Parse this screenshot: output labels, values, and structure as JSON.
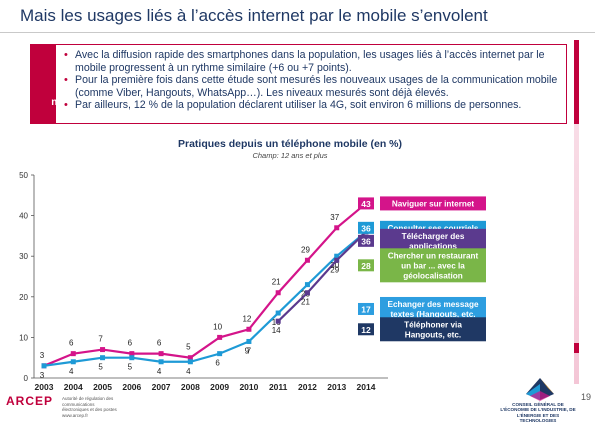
{
  "slide": {
    "title": "Mais les usages liés à l’accès internet par le mobile s’envolent",
    "page_number": "19"
  },
  "intro": {
    "side_label_line1": "Usages du",
    "side_label_line2": "mobile",
    "bullets": [
      "Avec la diffusion rapide des smartphones dans la population, les usages liés à l’accès internet par le mobile progressent à un rythme similaire (+6 ou +7 points).",
      "Pour la première fois dans cette étude sont mesurés les nouveaux usages de la communication mobile (comme Viber, Hangouts, WhatsApp…). Les niveaux mesurés sont déjà élevés.",
      "Par ailleurs, 12 % de la population déclarent utiliser la 4G, soit environ 6 millions de personnes."
    ]
  },
  "footer": {
    "arcep_brand": "ARCEP",
    "arcep_tagline": "Autorité de régulation des communications électroniques et des postes",
    "arcep_url": "www.arcep.fr",
    "cge_label": "CONSEIL GÉNÉRAL DE L’ÉCONOMIE DE L’INDUSTRIE, DE L’ÉNERGIE ET DES TECHNOLOGIES"
  },
  "colors": {
    "accent": "#c0003c",
    "navy": "#1f3864"
  },
  "chart_data": {
    "type": "line",
    "title": "Pratiques depuis un téléphone mobile (en %)",
    "subtitle": "Champ: 12 ans et plus",
    "x": [
      "2003",
      "2004",
      "2005",
      "2006",
      "2007",
      "2008",
      "2009",
      "2010",
      "2011",
      "2012",
      "2013",
      "2014"
    ],
    "ylim": [
      0,
      50
    ],
    "yticks": [
      0,
      10,
      20,
      30,
      40,
      50
    ],
    "grid": false,
    "legend": "right",
    "series": [
      {
        "name": "Naviguer sur internet",
        "color": "#d4148a",
        "x": [
          "2003",
          "2004",
          "2005",
          "2006",
          "2007",
          "2008",
          "2009",
          "2010",
          "2011",
          "2012",
          "2013",
          "2014"
        ],
        "values": [
          3,
          6,
          7,
          6,
          6,
          5,
          10,
          12,
          21,
          29,
          37,
          43
        ],
        "labels": [
          "3",
          "6",
          "7",
          "6",
          "6",
          "5",
          "10",
          "12",
          "21",
          "29",
          "37",
          "43"
        ]
      },
      {
        "name": "Consulter ses courriels",
        "color": "#1e9ad6",
        "x": [
          "2003",
          "2004",
          "2005",
          "2006",
          "2007",
          "2008",
          "2009",
          "2010",
          "2011",
          "2012",
          "2013",
          "2014"
        ],
        "values": [
          3,
          4,
          5,
          5,
          4,
          4,
          6,
          9,
          16,
          23,
          30,
          36
        ],
        "labels": [
          "3",
          "4",
          "5",
          "5",
          "4",
          "4",
          "6",
          "9",
          "16",
          "23",
          "30",
          "36"
        ]
      },
      {
        "name": "Télécharger des applications",
        "color": "#5b3a8e",
        "x": [
          "2011",
          "2012",
          "2013",
          "2014"
        ],
        "values": [
          14,
          21,
          29,
          36
        ],
        "labels": [
          "14",
          "21",
          "29",
          "36"
        ]
      },
      {
        "name": "Chercher un restaurant un bar ... avec la géolocalisation",
        "color": "#7ab648",
        "x": [
          "2014"
        ],
        "values": [
          28
        ],
        "labels": [
          "28"
        ]
      },
      {
        "name": "Echanger des message textes (Hangouts, etc.",
        "color": "#2d9ee0",
        "x": [
          "2014"
        ],
        "values": [
          17
        ],
        "labels": [
          "17"
        ]
      },
      {
        "name": "Téléphoner via Hangouts, etc.",
        "color": "#1f3864",
        "x": [
          "2014"
        ],
        "values": [
          12
        ],
        "labels": [
          "12"
        ]
      }
    ],
    "extra_point_labels": [
      {
        "x": "2010",
        "y": 7,
        "label": "7"
      }
    ],
    "legend_labels": [
      {
        "lines": [
          "Naviguer sur internet"
        ],
        "value": "43",
        "color": "#d4148a"
      },
      {
        "lines": [
          "Consulter ses courriels"
        ],
        "value": "36",
        "color": "#1e9ad6"
      },
      {
        "lines": [
          "Télécharger des",
          "applications"
        ],
        "value": "36",
        "color": "#5b3a8e"
      },
      {
        "lines": [
          "Chercher un restaurant",
          "un bar ... avec la",
          "géolocalisation"
        ],
        "value": "28",
        "color": "#7ab648"
      },
      {
        "lines": [
          "Echanger des message",
          "textes (Hangouts, etc."
        ],
        "value": "17",
        "color": "#2d9ee0"
      },
      {
        "lines": [
          "Téléphoner via",
          "Hangouts, etc."
        ],
        "value": "12",
        "color": "#1f3864"
      }
    ]
  }
}
